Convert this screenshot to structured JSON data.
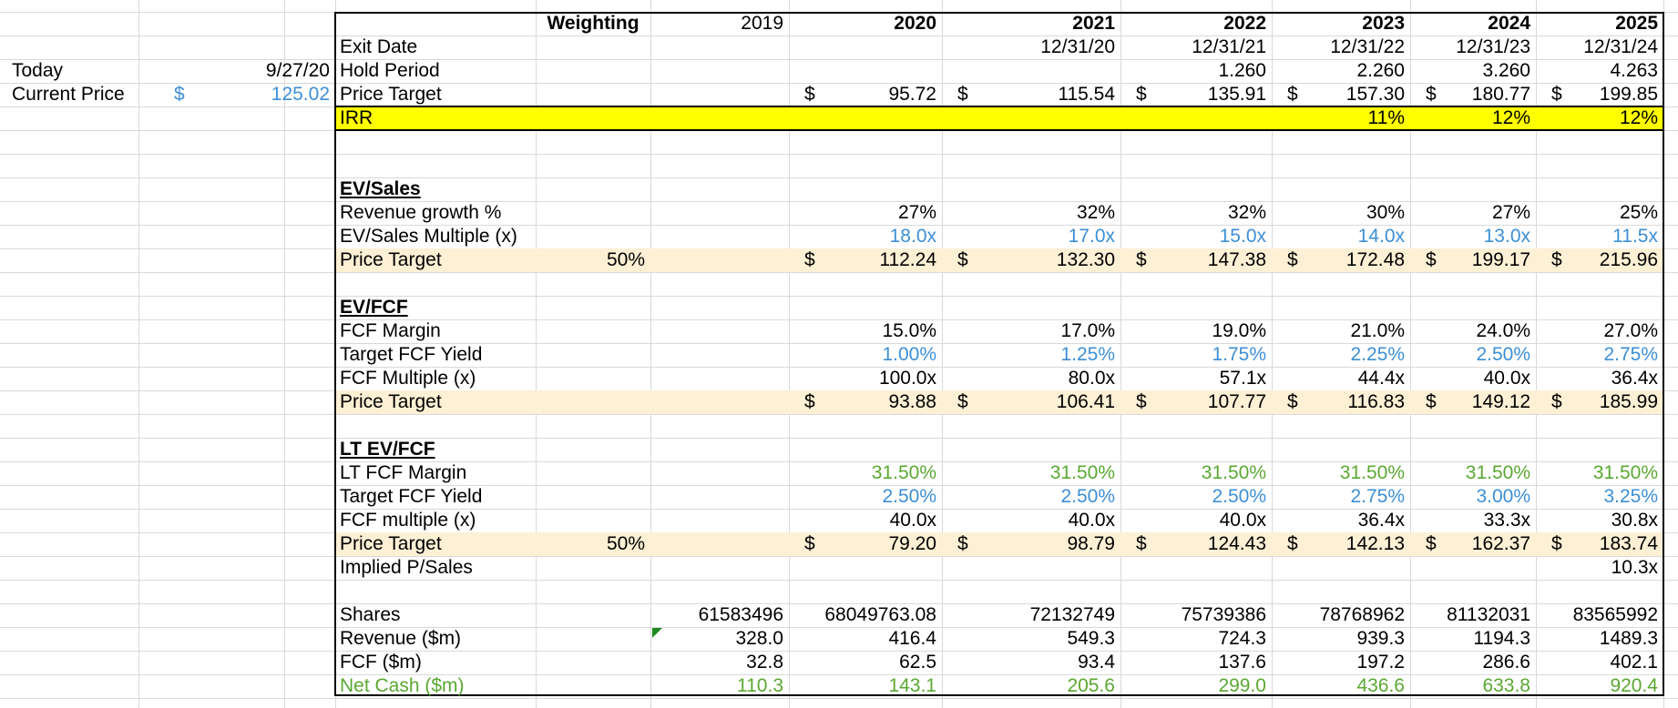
{
  "left": {
    "today_label": "Today",
    "today_value": "9/27/20",
    "current_price_label": "Current Price",
    "current_price_currency": "$",
    "current_price_value": "125.02"
  },
  "header": {
    "weighting": "Weighting",
    "years": [
      "2019",
      "2020",
      "2021",
      "2022",
      "2023",
      "2024",
      "2025"
    ]
  },
  "top_rows": [
    {
      "label": "Exit Date",
      "cells": [
        "",
        "",
        "12/31/20",
        "12/31/21",
        "12/31/22",
        "12/31/23",
        "12/31/24"
      ]
    },
    {
      "label": "Hold Period",
      "cells": [
        "",
        "",
        "",
        "1.260",
        "2.260",
        "3.260",
        "4.263"
      ]
    },
    {
      "label": "Price Target",
      "cells": [
        "",
        "95.72",
        "115.54",
        "135.91",
        "157.30",
        "180.77",
        "199.85"
      ],
      "currency": true
    },
    {
      "label": "IRR",
      "cells": [
        "",
        "",
        "",
        "",
        "11%",
        "12%",
        "12%"
      ]
    }
  ],
  "currency_symbol": "$",
  "ev_sales": {
    "title": "EV/Sales",
    "rows": [
      {
        "label": "Revenue growth %",
        "cells": [
          "",
          "27%",
          "32%",
          "32%",
          "30%",
          "27%",
          "25%"
        ]
      },
      {
        "label": "EV/Sales Multiple (x)",
        "cells": [
          "",
          "18.0x",
          "17.0x",
          "15.0x",
          "14.0x",
          "13.0x",
          "11.5x"
        ]
      },
      {
        "label": "Price Target",
        "weight": "50%",
        "cells": [
          "",
          "112.24",
          "132.30",
          "147.38",
          "172.48",
          "199.17",
          "215.96"
        ]
      }
    ]
  },
  "ev_fcf": {
    "title": "EV/FCF",
    "rows": [
      {
        "label": "FCF Margin",
        "cells": [
          "",
          "15.0%",
          "17.0%",
          "19.0%",
          "21.0%",
          "24.0%",
          "27.0%"
        ]
      },
      {
        "label": "Target FCF Yield",
        "cells": [
          "",
          "1.00%",
          "1.25%",
          "1.75%",
          "2.25%",
          "2.50%",
          "2.75%"
        ]
      },
      {
        "label": "FCF Multiple (x)",
        "cells": [
          "",
          "100.0x",
          "80.0x",
          "57.1x",
          "44.4x",
          "40.0x",
          "36.4x"
        ]
      },
      {
        "label": "Price Target",
        "cells": [
          "",
          "93.88",
          "106.41",
          "107.77",
          "116.83",
          "149.12",
          "185.99"
        ]
      }
    ]
  },
  "lt_ev_fcf": {
    "title": "LT EV/FCF",
    "rows": [
      {
        "label": "LT FCF Margin",
        "cells": [
          "",
          "31.50%",
          "31.50%",
          "31.50%",
          "31.50%",
          "31.50%",
          "31.50%"
        ]
      },
      {
        "label": "Target FCF Yield",
        "cells": [
          "",
          "2.50%",
          "2.50%",
          "2.50%",
          "2.75%",
          "3.00%",
          "3.25%"
        ]
      },
      {
        "label": "FCF multiple (x)",
        "cells": [
          "",
          "40.0x",
          "40.0x",
          "40.0x",
          "36.4x",
          "33.3x",
          "30.8x"
        ]
      },
      {
        "label": "Price Target",
        "weight": "50%",
        "cells": [
          "",
          "79.20",
          "98.79",
          "124.43",
          "142.13",
          "162.37",
          "183.74"
        ]
      },
      {
        "label": "Implied P/Sales",
        "cells": [
          "",
          "",
          "",
          "",
          "",
          "",
          "10.3x"
        ]
      }
    ]
  },
  "bottom": {
    "rows": [
      {
        "label": "Shares",
        "cells": [
          "61583496",
          "68049763.08",
          "72132749",
          "75739386",
          "78768962",
          "81132031",
          "83565992"
        ]
      },
      {
        "label": "Revenue ($m)",
        "cells": [
          "328.0",
          "416.4",
          "549.3",
          "724.3",
          "939.3",
          "1194.3",
          "1489.3"
        ]
      },
      {
        "label": "FCF ($m)",
        "cells": [
          "32.8",
          "62.5",
          "93.4",
          "137.6",
          "197.2",
          "286.6",
          "402.1"
        ]
      },
      {
        "label": "Net Cash ($m)",
        "cells": [
          "110.3",
          "143.1",
          "205.6",
          "299.0",
          "436.6",
          "633.8",
          "920.4"
        ]
      }
    ]
  },
  "colors": {
    "input_blue": "#3d8fd6",
    "link_green": "#5aa832",
    "irr_highlight": "#ffff00",
    "price_target_highlight": "#fdf0d5",
    "gridline": "#d9d9d9"
  }
}
